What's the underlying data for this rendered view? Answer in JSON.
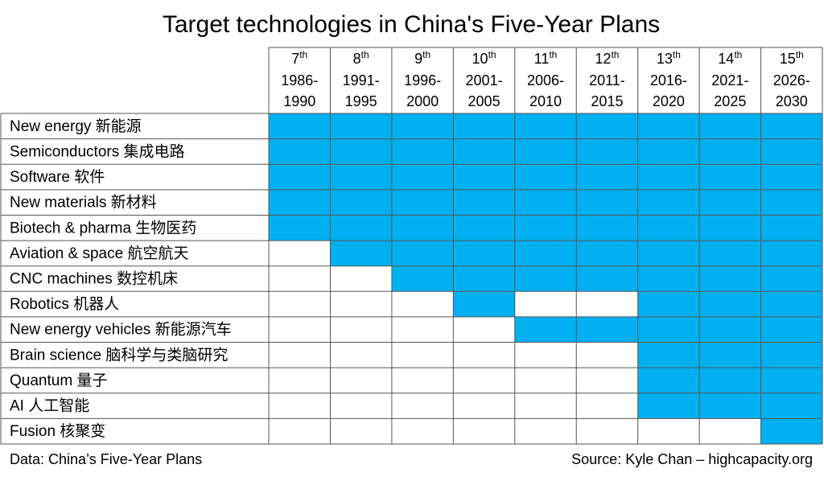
{
  "title": "Target technologies in China's Five-Year Plans",
  "fill_color": "#00b0f0",
  "columns": [
    {
      "number": "7",
      "suffix": "th",
      "start": "1986-",
      "end": "1990"
    },
    {
      "number": "8",
      "suffix": "th",
      "start": "1991-",
      "end": "1995"
    },
    {
      "number": "9",
      "suffix": "th",
      "start": "1996-",
      "end": "2000"
    },
    {
      "number": "10",
      "suffix": "th",
      "start": "2001-",
      "end": "2005"
    },
    {
      "number": "11",
      "suffix": "th",
      "start": "2006-",
      "end": "2010"
    },
    {
      "number": "12",
      "suffix": "th",
      "start": "2011-",
      "end": "2015"
    },
    {
      "number": "13",
      "suffix": "th",
      "start": "2016-",
      "end": "2020"
    },
    {
      "number": "14",
      "suffix": "th",
      "start": "2021-",
      "end": "2025"
    },
    {
      "number": "15",
      "suffix": "th",
      "start": "2026-",
      "end": "2030"
    }
  ],
  "rows": [
    {
      "label": "New energy 新能源",
      "filled": [
        true,
        true,
        true,
        true,
        true,
        true,
        true,
        true,
        true
      ]
    },
    {
      "label": "Semiconductors 集成电路",
      "filled": [
        true,
        true,
        true,
        true,
        true,
        true,
        true,
        true,
        true
      ]
    },
    {
      "label": "Software 软件",
      "filled": [
        true,
        true,
        true,
        true,
        true,
        true,
        true,
        true,
        true
      ]
    },
    {
      "label": "New materials 新材料",
      "filled": [
        true,
        true,
        true,
        true,
        true,
        true,
        true,
        true,
        true
      ]
    },
    {
      "label": "Biotech & pharma 生物医药",
      "filled": [
        true,
        true,
        true,
        true,
        true,
        true,
        true,
        true,
        true
      ]
    },
    {
      "label": "Aviation & space 航空航天",
      "filled": [
        false,
        true,
        true,
        true,
        true,
        true,
        true,
        true,
        true
      ]
    },
    {
      "label": "CNC machines 数控机床",
      "filled": [
        false,
        false,
        true,
        true,
        true,
        true,
        true,
        true,
        true
      ]
    },
    {
      "label": "Robotics 机器人",
      "filled": [
        false,
        false,
        false,
        true,
        false,
        false,
        true,
        true,
        true
      ]
    },
    {
      "label": "New energy vehicles 新能源汽车",
      "filled": [
        false,
        false,
        false,
        false,
        true,
        true,
        true,
        true,
        true
      ]
    },
    {
      "label": "Brain science 脑科学与类脑研究",
      "filled": [
        false,
        false,
        false,
        false,
        false,
        false,
        true,
        true,
        true
      ]
    },
    {
      "label": "Quantum 量子",
      "filled": [
        false,
        false,
        false,
        false,
        false,
        false,
        true,
        true,
        true
      ]
    },
    {
      "label": "AI 人工智能",
      "filled": [
        false,
        false,
        false,
        false,
        false,
        false,
        true,
        true,
        true
      ]
    },
    {
      "label": "Fusion 核聚变",
      "filled": [
        false,
        false,
        false,
        false,
        false,
        false,
        false,
        false,
        true
      ]
    }
  ],
  "footer": {
    "data": "Data: China’s Five-Year Plans",
    "source": "Source: Kyle Chan – highcapacity.org"
  }
}
